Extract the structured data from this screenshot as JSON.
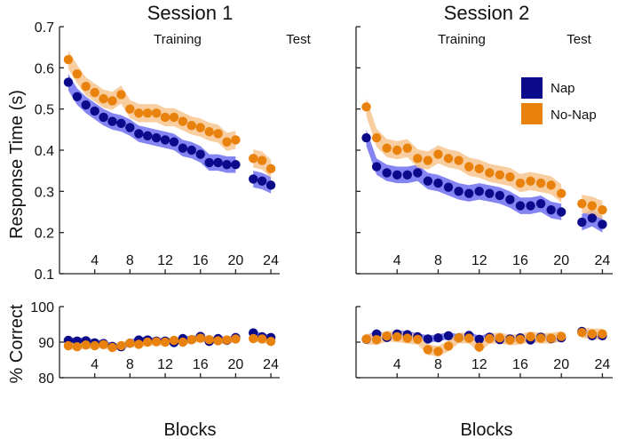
{
  "colors": {
    "nap": "#0a0a8a",
    "nonap": "#e8820c",
    "nap_band": "#6f6ff0",
    "nonap_band": "#f7c48e"
  },
  "figure": {
    "ylabel_rt": "Response Time (s)",
    "ylabel_acc": "% Correct",
    "xlabel": "Blocks"
  },
  "legend": {
    "items": [
      {
        "name": "Nap",
        "color": "#0a0a8a"
      },
      {
        "name": "No-Nap",
        "color": "#e8820c"
      }
    ]
  },
  "chart_data": [
    {
      "type": "scatter",
      "title": "Session 1",
      "panel": "rt",
      "section_labels": [
        "Training",
        "Test"
      ],
      "ylim": [
        0.1,
        0.7
      ],
      "yticks": [
        "0.1",
        "0.2",
        "0.3",
        "0.4",
        "0.5",
        "0.6",
        "0.7"
      ],
      "xlim": [
        0,
        25
      ],
      "xticks": [
        "4",
        "8",
        "12",
        "16",
        "20",
        "24"
      ],
      "x": [
        1,
        2,
        3,
        4,
        5,
        6,
        7,
        8,
        9,
        10,
        11,
        12,
        13,
        14,
        15,
        16,
        17,
        18,
        19,
        20,
        22,
        23,
        24
      ],
      "series": [
        {
          "name": "Nap",
          "values": [
            0.565,
            0.53,
            0.51,
            0.495,
            0.48,
            0.47,
            0.465,
            0.455,
            0.44,
            0.435,
            0.43,
            0.425,
            0.42,
            0.405,
            0.4,
            0.39,
            0.37,
            0.37,
            0.365,
            0.365,
            0.33,
            0.325,
            0.315
          ],
          "err": 0.02
        },
        {
          "name": "No-Nap",
          "values": [
            0.62,
            0.585,
            0.555,
            0.54,
            0.525,
            0.52,
            0.535,
            0.5,
            0.49,
            0.49,
            0.49,
            0.48,
            0.48,
            0.47,
            0.46,
            0.455,
            0.445,
            0.44,
            0.42,
            0.425,
            0.38,
            0.375,
            0.355
          ],
          "err": 0.022
        }
      ]
    },
    {
      "type": "scatter",
      "title": "Session 2",
      "panel": "rt",
      "section_labels": [
        "Training",
        "Test"
      ],
      "ylim": [
        0.1,
        0.7
      ],
      "xlim": [
        0,
        25
      ],
      "xticks": [
        "4",
        "8",
        "12",
        "16",
        "20",
        "24"
      ],
      "x": [
        1,
        2,
        3,
        4,
        5,
        6,
        7,
        8,
        9,
        10,
        11,
        12,
        13,
        14,
        15,
        16,
        17,
        18,
        19,
        20,
        22,
        23,
        24
      ],
      "series": [
        {
          "name": "Nap",
          "values": [
            0.43,
            0.36,
            0.345,
            0.34,
            0.34,
            0.345,
            0.325,
            0.32,
            0.31,
            0.3,
            0.295,
            0.3,
            0.295,
            0.29,
            0.28,
            0.265,
            0.265,
            0.27,
            0.255,
            0.25,
            0.225,
            0.235,
            0.22
          ],
          "err": 0.02
        },
        {
          "name": "No-Nap",
          "values": [
            0.505,
            0.43,
            0.405,
            0.4,
            0.405,
            0.38,
            0.375,
            0.39,
            0.38,
            0.375,
            0.36,
            0.355,
            0.345,
            0.34,
            0.335,
            0.32,
            0.325,
            0.32,
            0.315,
            0.295,
            0.27,
            0.265,
            0.255
          ],
          "err": 0.022
        }
      ]
    },
    {
      "type": "scatter",
      "panel": "accuracy",
      "ylim": [
        80,
        100
      ],
      "yticks": [
        "80",
        "90",
        "100"
      ],
      "xlim": [
        0,
        25
      ],
      "xticks": [
        "4",
        "8",
        "12",
        "16",
        "20",
        "24"
      ],
      "x": [
        1,
        2,
        3,
        4,
        5,
        6,
        7,
        8,
        9,
        10,
        11,
        12,
        13,
        14,
        15,
        16,
        17,
        18,
        19,
        20,
        22,
        23,
        24
      ],
      "series": [
        {
          "name": "Nap",
          "values": [
            90.5,
            90.3,
            90.4,
            89.8,
            89.6,
            88.8,
            88.7,
            89.7,
            90.6,
            90.6,
            90.3,
            90.3,
            89.9,
            91,
            90.7,
            91.6,
            90.2,
            91,
            90.5,
            91.3,
            92.6,
            91.5,
            91.3
          ],
          "err": 0.9
        },
        {
          "name": "No-Nap",
          "values": [
            89,
            88.7,
            89.2,
            89,
            89.3,
            88.5,
            89,
            89.7,
            89.4,
            90,
            90.1,
            90,
            90.5,
            90,
            90.7,
            91.1,
            90.7,
            90.4,
            90.6,
            90.9,
            91,
            90.9,
            90.2
          ],
          "err": 1.0
        }
      ]
    },
    {
      "type": "scatter",
      "panel": "accuracy",
      "ylim": [
        80,
        100
      ],
      "xlim": [
        0,
        25
      ],
      "xticks": [
        "4",
        "8",
        "12",
        "16",
        "20",
        "24"
      ],
      "x": [
        1,
        2,
        3,
        4,
        5,
        6,
        7,
        8,
        9,
        10,
        11,
        12,
        13,
        14,
        15,
        16,
        17,
        18,
        19,
        20,
        22,
        23,
        24
      ],
      "series": [
        {
          "name": "Nap",
          "values": [
            90.8,
            92.3,
            91.3,
            92.3,
            92.1,
            91.5,
            90.9,
            91.2,
            91.8,
            91.2,
            91.9,
            90.8,
            91.4,
            90.7,
            90.9,
            91.2,
            90.6,
            91.4,
            91,
            91.2,
            93,
            91.8,
            91.8
          ],
          "err": 1.0
        },
        {
          "name": "No-Nap",
          "values": [
            90.9,
            90.7,
            91.7,
            91.5,
            91.1,
            90.8,
            87.9,
            87.4,
            88.9,
            91.2,
            91.1,
            88.6,
            91,
            91.2,
            90.6,
            90.8,
            91.5,
            91.1,
            91.1,
            91.6,
            92.7,
            92.3,
            92.3
          ],
          "err": 1.5
        }
      ]
    }
  ]
}
